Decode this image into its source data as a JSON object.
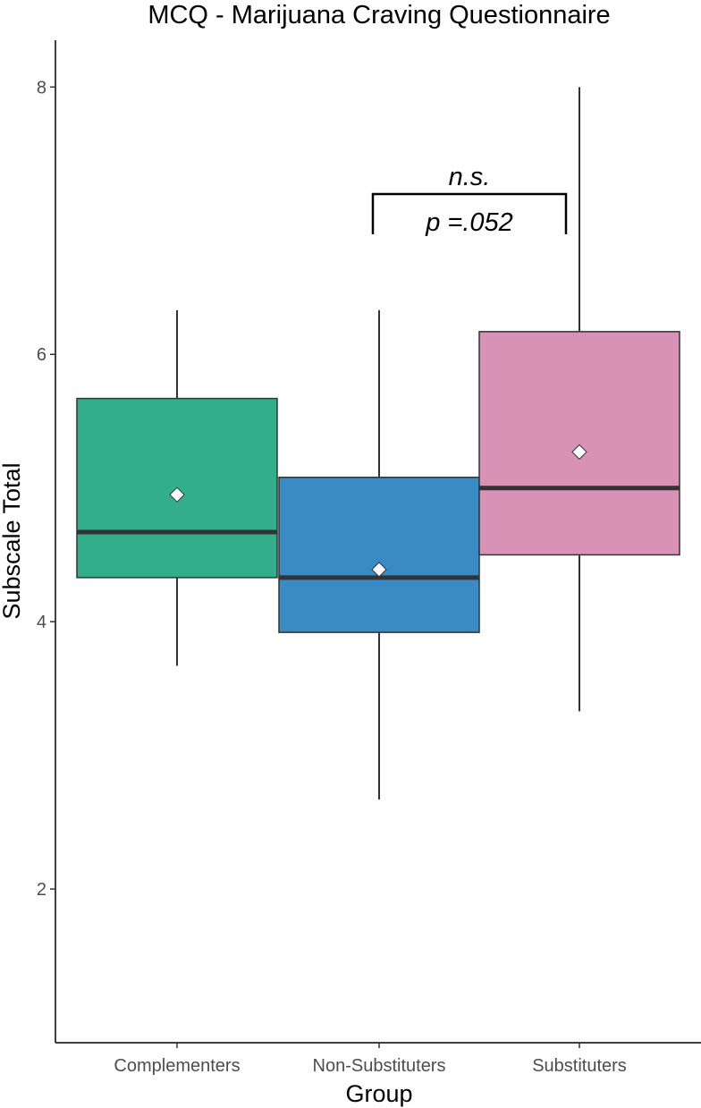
{
  "chart_data": {
    "type": "boxplot",
    "title": "MCQ - Marijuana Craving Questionnaire",
    "xlabel": "Group",
    "ylabel": "Subscale Total",
    "ylim": [
      0.85,
      8.35
    ],
    "yticks": [
      2,
      4,
      6,
      8
    ],
    "grid": false,
    "legend": "none",
    "categories": [
      "Complementers",
      "Non-Substituters",
      "Substituters"
    ],
    "boxes": [
      {
        "category": "Complementers",
        "whisker_low": 3.67,
        "q1": 4.33,
        "median": 4.67,
        "q3": 5.67,
        "whisker_high": 6.33,
        "mean": 4.95,
        "color": "#32ae8a"
      },
      {
        "category": "Non-Substituters",
        "whisker_low": 2.67,
        "q1": 3.92,
        "median": 4.33,
        "q3": 5.08,
        "whisker_high": 6.33,
        "mean": 4.39,
        "color": "#3a8bc3"
      },
      {
        "category": "Substituters",
        "whisker_low": 3.33,
        "q1": 4.5,
        "median": 5.0,
        "q3": 6.17,
        "whisker_high": 8.0,
        "mean": 5.27,
        "color": "#d792b6"
      }
    ],
    "annotation": {
      "from": "Non-Substituters",
      "to": "Substituters",
      "label_top": "n.s.",
      "label_bottom": "p =.052"
    }
  }
}
